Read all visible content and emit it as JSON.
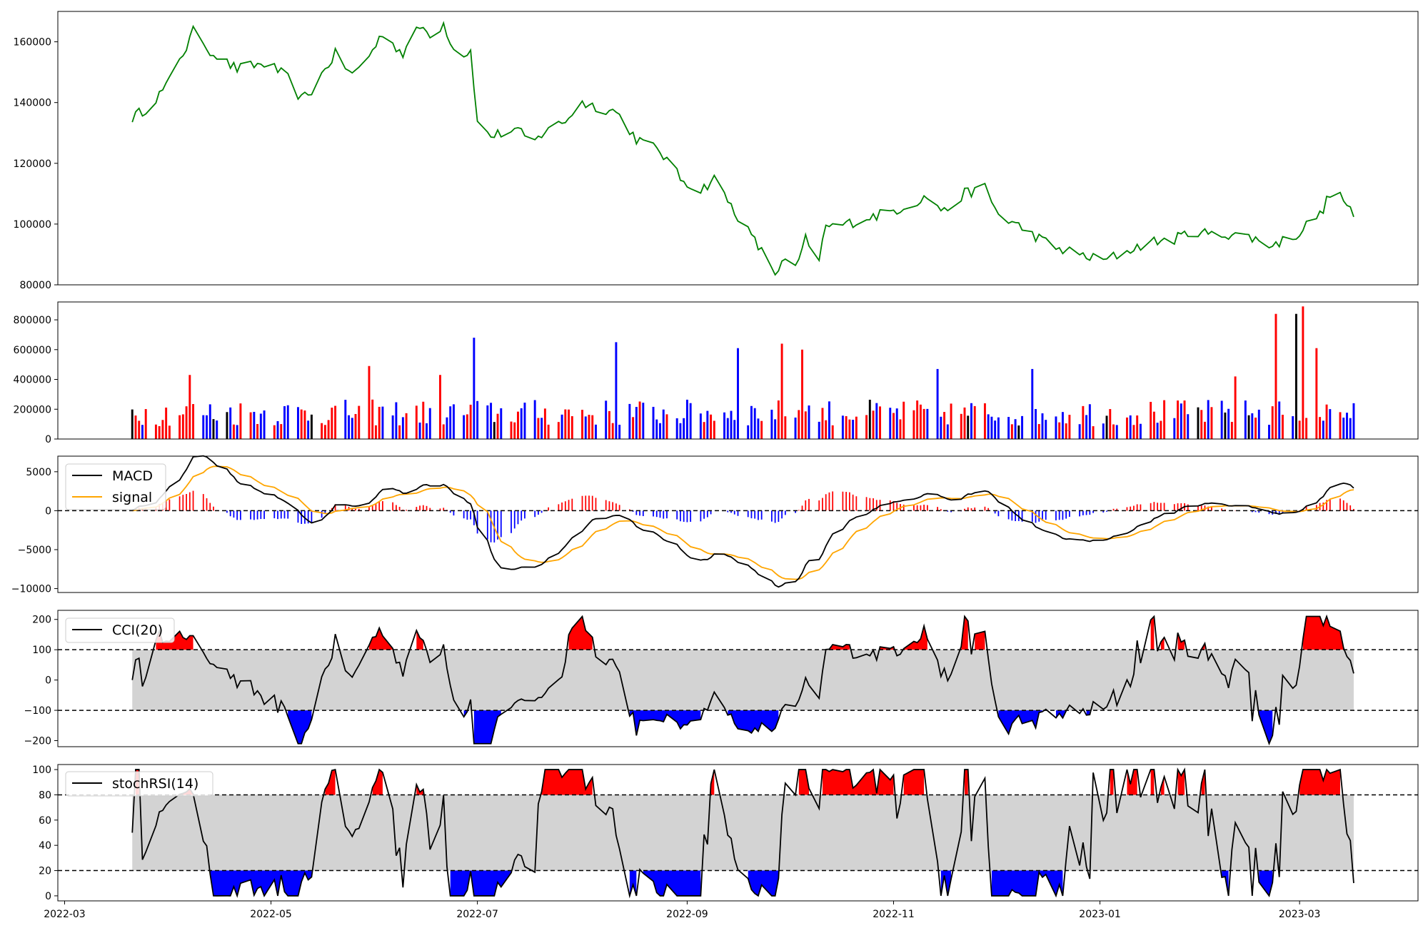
{
  "chart_data": [
    {
      "type": "line",
      "panel": "price",
      "title": "",
      "y_ticks": [
        "80000",
        "100000",
        "120000",
        "140000",
        "160000"
      ],
      "ylim": [
        80000,
        170000
      ],
      "grid": false,
      "line_color": "#008000",
      "series": [
        {
          "anchors_x": [
            "2022-03-21",
            "2022-03-25",
            "2022-03-31",
            "2022-04-04",
            "2022-04-06",
            "2022-04-09",
            "2022-04-12",
            "2022-04-18",
            "2022-04-21",
            "2022-04-25",
            "2022-04-30",
            "2022-05-06",
            "2022-05-10",
            "2022-05-13",
            "2022-05-20",
            "2022-05-25",
            "2022-05-31",
            "2022-06-03",
            "2022-06-09",
            "2022-06-14",
            "2022-06-18",
            "2022-06-21",
            "2022-06-25",
            "2022-06-29",
            "2022-06-30",
            "2022-07-01",
            "2022-07-05",
            "2022-07-12",
            "2022-07-18",
            "2022-07-22",
            "2022-07-26",
            "2022-08-01",
            "2022-08-04",
            "2022-08-11",
            "2022-08-17",
            "2022-08-24",
            "2022-08-30",
            "2022-09-05",
            "2022-09-09",
            "2022-09-14",
            "2022-09-20",
            "2022-09-27",
            "2022-09-30",
            "2022-10-03",
            "2022-10-06",
            "2022-10-09",
            "2022-10-12",
            "2022-10-18",
            "2022-10-24",
            "2022-10-31",
            "2022-11-05",
            "2022-11-11",
            "2022-11-16",
            "2022-11-22",
            "2022-11-28",
            "2022-12-02",
            "2022-12-07",
            "2022-12-13",
            "2022-12-19",
            "2022-12-23",
            "2022-12-29",
            "2023-01-02",
            "2023-01-09",
            "2023-01-15",
            "2023-01-23",
            "2023-01-29",
            "2023-02-04",
            "2023-02-10",
            "2023-02-16",
            "2023-02-21",
            "2023-02-27",
            "2023-03-01",
            "2023-03-04",
            "2023-03-07",
            "2023-03-11",
            "2023-03-14",
            "2023-03-18"
          ],
          "anchors_y": [
            135000,
            138000,
            145000,
            155000,
            158000,
            166000,
            158000,
            153000,
            151000,
            152000,
            153000,
            148000,
            141000,
            144000,
            156000,
            149000,
            157000,
            163000,
            156000,
            165000,
            162000,
            166000,
            155000,
            157000,
            146000,
            133000,
            129000,
            131000,
            127000,
            132000,
            133000,
            140000,
            139000,
            137000,
            128000,
            124000,
            115000,
            111000,
            115000,
            106000,
            96000,
            84000,
            88000,
            85000,
            95000,
            84000,
            99000,
            100000,
            102000,
            104000,
            106000,
            109000,
            104000,
            110000,
            112000,
            103000,
            100000,
            96000,
            92000,
            91000,
            89000,
            88000,
            91000,
            94000,
            95000,
            98000,
            96000,
            97000,
            95000,
            93000,
            96000,
            97000,
            101000,
            103000,
            112000,
            108000,
            100000
          ],
          "noise": 1800
        }
      ]
    },
    {
      "type": "bar",
      "panel": "volume",
      "y_ticks": [
        "0",
        "200000",
        "400000",
        "600000",
        "800000"
      ],
      "ylim": [
        0,
        920000
      ],
      "colors": {
        "up": "#ff0000",
        "down": "#0000ff",
        "flat": "#000000"
      },
      "base_volume": 190000,
      "spikes": [
        {
          "date": "2022-04-08",
          "value": 430000
        },
        {
          "date": "2022-05-30",
          "value": 490000
        },
        {
          "date": "2022-06-20",
          "value": 430000
        },
        {
          "date": "2022-07-01",
          "value": 680000
        },
        {
          "date": "2022-08-12",
          "value": 650000
        },
        {
          "date": "2022-09-17",
          "value": 610000
        },
        {
          "date": "2022-09-30",
          "value": 640000
        },
        {
          "date": "2022-10-06",
          "value": 600000
        },
        {
          "date": "2022-11-15",
          "value": 470000
        },
        {
          "date": "2022-12-12",
          "value": 470000
        },
        {
          "date": "2023-02-11",
          "value": 420000
        },
        {
          "date": "2023-02-23",
          "value": 840000
        },
        {
          "date": "2023-03-01",
          "value": 840000
        },
        {
          "date": "2023-03-03",
          "value": 890000
        },
        {
          "date": "2023-03-05",
          "value": 610000
        }
      ]
    },
    {
      "type": "line",
      "panel": "macd",
      "y_ticks": [
        "−10000",
        "−5000",
        "0",
        "5000"
      ],
      "ylim": [
        -10500,
        7000
      ],
      "legend": {
        "position": "upper-left",
        "items": [
          "MACD",
          "signal"
        ]
      },
      "series": [
        {
          "name": "MACD",
          "color": "#000000"
        },
        {
          "name": "signal",
          "color": "#ffa500"
        }
      ],
      "histogram_colors": {
        "positive": "#ff0000",
        "negative": "#0000ff"
      },
      "zero_line": "dashed"
    },
    {
      "type": "line",
      "panel": "cci",
      "y_ticks": [
        "−200",
        "−100",
        "0",
        "100",
        "200"
      ],
      "ylim": [
        -220,
        230
      ],
      "thresholds": [
        100,
        -100
      ],
      "legend": {
        "position": "upper-left",
        "items": [
          "CCI(20)"
        ]
      },
      "band_color": "#d3d3d3",
      "fill_colors": {
        "above": "#ff0000",
        "below": "#0000ff"
      }
    },
    {
      "type": "line",
      "panel": "stochrsi",
      "y_ticks": [
        "0",
        "20",
        "40",
        "60",
        "80",
        "100"
      ],
      "ylim": [
        -4,
        104
      ],
      "thresholds": [
        80,
        20
      ],
      "legend": {
        "position": "upper-left",
        "items": [
          "stochRSI(14)"
        ]
      },
      "band_color": "#d3d3d3",
      "fill_colors": {
        "above": "#ff0000",
        "below": "#0000ff"
      }
    }
  ],
  "x_axis": {
    "range": [
      "2022-02-27",
      "2023-04-05"
    ],
    "data_range": [
      "2022-03-21",
      "2023-03-18"
    ],
    "ticks": [
      "2022-03",
      "2022-05",
      "2022-07",
      "2022-09",
      "2022-11",
      "2023-01",
      "2023-03"
    ]
  }
}
